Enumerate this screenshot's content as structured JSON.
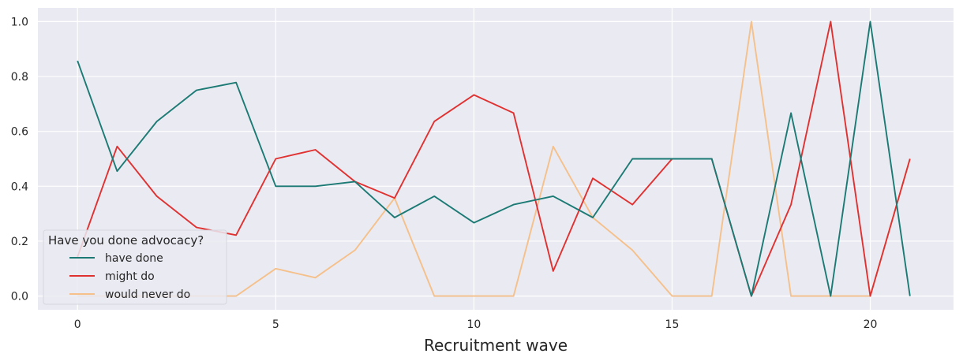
{
  "chart_data": {
    "type": "line",
    "xlabel": "Recruitment wave",
    "ylabel": "",
    "xlim": [
      -1,
      22.1
    ],
    "ylim": [
      -0.05,
      1.05
    ],
    "xticks": [
      0,
      5,
      10,
      15,
      20
    ],
    "yticks": [
      0.0,
      0.2,
      0.4,
      0.6,
      0.8,
      1.0
    ],
    "xtick_labels": [
      "0",
      "5",
      "10",
      "15",
      "20"
    ],
    "ytick_labels": [
      "0.0",
      "0.2",
      "0.4",
      "0.6",
      "0.8",
      "1.0"
    ],
    "grid": true,
    "background": "#eaeaf2",
    "legend": {
      "title": "Have you done advocacy?",
      "placement": "lower-left"
    },
    "x": [
      0,
      1,
      2,
      3,
      4,
      5,
      6,
      7,
      8,
      9,
      10,
      11,
      12,
      13,
      14,
      15,
      16,
      17,
      18,
      19,
      20,
      21
    ],
    "series": [
      {
        "name": "have done",
        "color": "#1b7a74",
        "values": [
          0.857,
          0.455,
          0.636,
          0.75,
          0.778,
          0.4,
          0.4,
          0.417,
          0.286,
          0.364,
          0.267,
          0.333,
          0.364,
          0.286,
          0.5,
          0.5,
          0.5,
          0.0,
          0.667,
          0.0,
          1.0,
          0.0
        ]
      },
      {
        "name": "might do",
        "color": "#e03131",
        "values": [
          0.143,
          0.545,
          0.364,
          0.25,
          0.222,
          0.5,
          0.533,
          0.417,
          0.357,
          0.636,
          0.733,
          0.667,
          0.091,
          0.429,
          0.333,
          0.5,
          0.5,
          0.0,
          0.333,
          1.0,
          0.0,
          0.5
        ]
      },
      {
        "name": "would never do",
        "color": "#f5c08a",
        "values": [
          0.0,
          0.0,
          0.0,
          0.0,
          0.0,
          0.1,
          0.067,
          0.167,
          0.357,
          0.0,
          0.0,
          0.0,
          0.545,
          0.286,
          0.167,
          0.0,
          0.0,
          1.0,
          0.0,
          0.0,
          0.0,
          0.5
        ]
      }
    ]
  }
}
